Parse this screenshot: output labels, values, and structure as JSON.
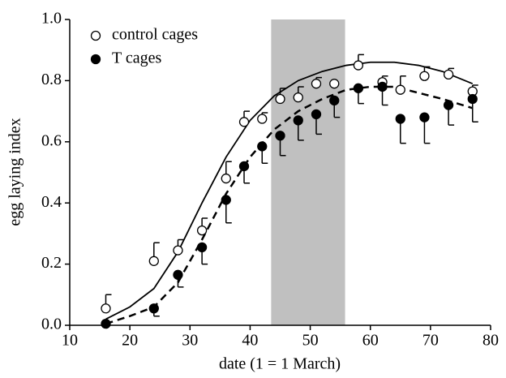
{
  "chart_data": {
    "type": "scatter",
    "xlabel": "date (1 = 1 March)",
    "ylabel": "egg laying index",
    "xlim": [
      10,
      80
    ],
    "ylim": [
      0,
      1
    ],
    "xticks": [
      10,
      20,
      30,
      40,
      50,
      60,
      70,
      80
    ],
    "yticks": [
      {
        "value": 0,
        "label": "0.0"
      },
      0.2,
      0.4,
      0.6,
      0.8,
      {
        "value": 1,
        "label": "1.0"
      }
    ],
    "shade": [
      43.5,
      55.8
    ],
    "shade_color": "#c0c0c0",
    "series": [
      {
        "name": "control cages",
        "filled": false,
        "error_direction": "up",
        "x": [
          16,
          24,
          28,
          32,
          36,
          39,
          42,
          45,
          48,
          51,
          54,
          58,
          62,
          65,
          69,
          73,
          77
        ],
        "values": [
          0.055,
          0.21,
          0.245,
          0.31,
          0.48,
          0.665,
          0.675,
          0.74,
          0.745,
          0.79,
          0.79,
          0.85,
          0.795,
          0.77,
          0.815,
          0.82,
          0.765
        ],
        "errors": [
          0.045,
          0.06,
          0.035,
          0.04,
          0.055,
          0.035,
          0.02,
          0.035,
          0.035,
          0.02,
          0,
          0.035,
          0.02,
          0.045,
          0.03,
          0.02,
          0.02
        ]
      },
      {
        "name": "T cages",
        "filled": true,
        "error_direction": "down",
        "x": [
          16,
          24,
          28,
          32,
          36,
          39,
          42,
          45,
          48,
          51,
          54,
          58,
          62,
          65,
          69,
          73,
          77
        ],
        "values": [
          0.005,
          0.055,
          0.165,
          0.255,
          0.41,
          0.52,
          0.585,
          0.62,
          0.67,
          0.69,
          0.735,
          0.775,
          0.78,
          0.675,
          0.68,
          0.72,
          0.74
        ],
        "errors": [
          0,
          0.025,
          0.04,
          0.055,
          0.075,
          0.055,
          0.055,
          0.065,
          0.065,
          0.065,
          0.055,
          0.05,
          0.06,
          0.08,
          0.085,
          0.065,
          0.075
        ]
      }
    ],
    "fit_lines": [
      {
        "dashed": false,
        "x": [
          16,
          20,
          24,
          28,
          32,
          36,
          40,
          44,
          48,
          52,
          56,
          60,
          64,
          68,
          72,
          77
        ],
        "values": [
          0.02,
          0.06,
          0.12,
          0.24,
          0.4,
          0.55,
          0.67,
          0.75,
          0.8,
          0.83,
          0.85,
          0.86,
          0.86,
          0.85,
          0.83,
          0.79
        ]
      },
      {
        "dashed": true,
        "x": [
          16,
          20,
          24,
          28,
          32,
          36,
          40,
          44,
          48,
          52,
          56,
          60,
          64,
          68,
          72,
          77
        ],
        "values": [
          0.005,
          0.03,
          0.06,
          0.14,
          0.28,
          0.43,
          0.55,
          0.64,
          0.7,
          0.74,
          0.77,
          0.78,
          0.78,
          0.76,
          0.74,
          0.71
        ]
      }
    ]
  }
}
